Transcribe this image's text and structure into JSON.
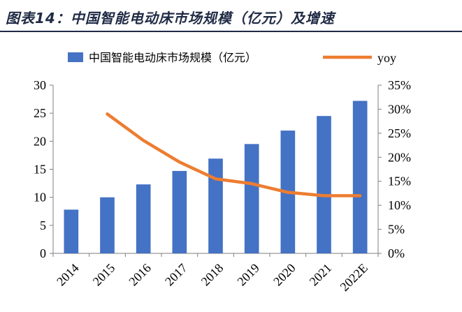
{
  "figure_title": "图表14：中国智能电动床市场规模（亿元）及增速",
  "chart_data": {
    "type": "bar",
    "categories": [
      "2014",
      "2015",
      "2016",
      "2017",
      "2018",
      "2019",
      "2020",
      "2021",
      "2022E"
    ],
    "series": [
      {
        "name": "中国智能电动床市场规模（亿元）",
        "type": "bar",
        "axis": "left",
        "values": [
          7.8,
          10.0,
          12.3,
          14.7,
          16.9,
          19.5,
          21.9,
          24.5,
          27.2
        ]
      },
      {
        "name": "yoy",
        "type": "line",
        "axis": "right",
        "values": [
          null,
          0.29,
          0.235,
          0.19,
          0.155,
          0.145,
          0.127,
          0.12,
          0.12
        ]
      }
    ],
    "ylim": [
      0,
      30
    ],
    "y_ticks": [
      "0",
      "5",
      "10",
      "15",
      "20",
      "25",
      "30"
    ],
    "y2lim": [
      0,
      0.35
    ],
    "y2_ticks": [
      "0%",
      "5%",
      "10%",
      "15%",
      "20%",
      "25%",
      "30%",
      "35%"
    ],
    "legend_position": "top",
    "grid": false,
    "colors": {
      "bar": "#4472C4",
      "line": "#ED7D31",
      "title": "#1f2a44"
    }
  }
}
